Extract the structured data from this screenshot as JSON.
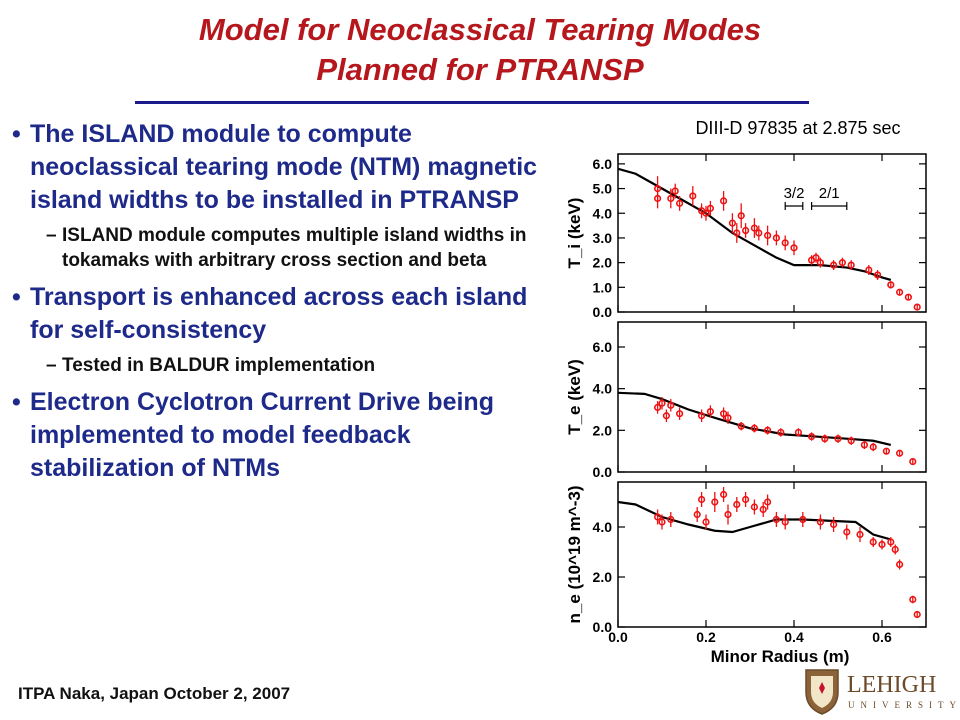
{
  "slide": {
    "title_line1": "Model for Neoclassical Tearing Modes",
    "title_line2": "Planned for PTRANSP",
    "bullets": [
      {
        "text": "The ISLAND module to compute neoclassical tearing mode (NTM) magnetic island widths to be installed in PTRANSP",
        "subs": [
          "ISLAND module computes multiple island widths in tokamaks with arbitrary cross section and beta"
        ]
      },
      {
        "text": "Transport is enhanced across each island for self-consistency",
        "subs": [
          "Tested in BALDUR implementation"
        ]
      },
      {
        "text": "Electron Cyclotron Current Drive being implemented to model feedback stabilization of NTMs",
        "subs": []
      }
    ],
    "footer": "ITPA Naka, Japan October 2, 2007",
    "logo": {
      "name": "LEHIGH",
      "sub": "UNIVERSITY",
      "icon": "lehigh-shield-icon"
    }
  },
  "chart_data": {
    "type": "scatter",
    "title": "DIII-D 97835 at 2.875 sec",
    "xlabel": "Minor Radius (m)",
    "xlim": [
      0.0,
      0.7
    ],
    "x_ticks": [
      "0.0",
      "0.2",
      "0.4",
      "0.6"
    ],
    "colors": {
      "data": "#ee1111",
      "model": "#000000"
    },
    "panels": [
      {
        "ylabel": "T_i (keV)",
        "ylim": [
          0.0,
          6.4
        ],
        "y_ticks": [
          "0.0",
          "1.0",
          "2.0",
          "3.0",
          "4.0",
          "5.0",
          "6.0"
        ],
        "annotations": [
          {
            "text": "3/2",
            "x_range": [
              0.38,
              0.42
            ]
          },
          {
            "text": "2/1",
            "x_range": [
              0.44,
              0.52
            ]
          }
        ],
        "model": {
          "x": [
            0.0,
            0.04,
            0.08,
            0.12,
            0.2,
            0.26,
            0.32,
            0.36,
            0.4,
            0.46,
            0.52,
            0.56,
            0.6,
            0.62
          ],
          "y": [
            5.8,
            5.6,
            5.2,
            4.8,
            4.0,
            3.2,
            2.6,
            2.2,
            1.9,
            1.9,
            1.8,
            1.65,
            1.4,
            1.3
          ]
        },
        "points": [
          {
            "x": 0.09,
            "y": 5.0,
            "err": 0.5
          },
          {
            "x": 0.09,
            "y": 4.6,
            "err": 0.4
          },
          {
            "x": 0.12,
            "y": 4.6,
            "err": 0.4
          },
          {
            "x": 0.13,
            "y": 4.9,
            "err": 0.3
          },
          {
            "x": 0.14,
            "y": 4.4,
            "err": 0.3
          },
          {
            "x": 0.17,
            "y": 4.7,
            "err": 0.4
          },
          {
            "x": 0.19,
            "y": 4.1,
            "err": 0.3
          },
          {
            "x": 0.2,
            "y": 4.0,
            "err": 0.3
          },
          {
            "x": 0.21,
            "y": 4.2,
            "err": 0.3
          },
          {
            "x": 0.24,
            "y": 4.5,
            "err": 0.4
          },
          {
            "x": 0.26,
            "y": 3.6,
            "err": 0.4
          },
          {
            "x": 0.27,
            "y": 3.2,
            "err": 0.4
          },
          {
            "x": 0.28,
            "y": 3.9,
            "err": 0.5
          },
          {
            "x": 0.29,
            "y": 3.3,
            "err": 0.3
          },
          {
            "x": 0.31,
            "y": 3.4,
            "err": 0.4
          },
          {
            "x": 0.32,
            "y": 3.2,
            "err": 0.3
          },
          {
            "x": 0.34,
            "y": 3.1,
            "err": 0.4
          },
          {
            "x": 0.36,
            "y": 3.0,
            "err": 0.3
          },
          {
            "x": 0.38,
            "y": 2.8,
            "err": 0.3
          },
          {
            "x": 0.4,
            "y": 2.6,
            "err": 0.3
          },
          {
            "x": 0.44,
            "y": 2.1,
            "err": 0.2
          },
          {
            "x": 0.45,
            "y": 2.2,
            "err": 0.2
          },
          {
            "x": 0.46,
            "y": 2.0,
            "err": 0.2
          },
          {
            "x": 0.49,
            "y": 1.9,
            "err": 0.2
          },
          {
            "x": 0.51,
            "y": 2.0,
            "err": 0.2
          },
          {
            "x": 0.53,
            "y": 1.9,
            "err": 0.2
          },
          {
            "x": 0.57,
            "y": 1.7,
            "err": 0.2
          },
          {
            "x": 0.59,
            "y": 1.5,
            "err": 0.2
          },
          {
            "x": 0.62,
            "y": 1.1,
            "err": 0.15
          },
          {
            "x": 0.64,
            "y": 0.8,
            "err": 0.1
          },
          {
            "x": 0.66,
            "y": 0.6,
            "err": 0.1
          },
          {
            "x": 0.68,
            "y": 0.2,
            "err": 0.1
          }
        ]
      },
      {
        "ylabel": "T_e (keV)",
        "ylim": [
          0.0,
          7.2
        ],
        "y_ticks": [
          "0.0",
          "2.0",
          "4.0",
          "6.0"
        ],
        "model": {
          "x": [
            0.0,
            0.06,
            0.1,
            0.16,
            0.22,
            0.3,
            0.38,
            0.45,
            0.52,
            0.58,
            0.62
          ],
          "y": [
            3.8,
            3.75,
            3.5,
            3.0,
            2.6,
            2.1,
            1.8,
            1.7,
            1.6,
            1.5,
            1.3
          ]
        },
        "points": [
          {
            "x": 0.09,
            "y": 3.1,
            "err": 0.3
          },
          {
            "x": 0.1,
            "y": 3.3,
            "err": 0.3
          },
          {
            "x": 0.11,
            "y": 2.7,
            "err": 0.3
          },
          {
            "x": 0.12,
            "y": 3.2,
            "err": 0.3
          },
          {
            "x": 0.14,
            "y": 2.8,
            "err": 0.3
          },
          {
            "x": 0.19,
            "y": 2.7,
            "err": 0.3
          },
          {
            "x": 0.21,
            "y": 2.9,
            "err": 0.3
          },
          {
            "x": 0.24,
            "y": 2.8,
            "err": 0.3
          },
          {
            "x": 0.25,
            "y": 2.6,
            "err": 0.3
          },
          {
            "x": 0.28,
            "y": 2.2,
            "err": 0.2
          },
          {
            "x": 0.31,
            "y": 2.1,
            "err": 0.2
          },
          {
            "x": 0.34,
            "y": 2.0,
            "err": 0.2
          },
          {
            "x": 0.37,
            "y": 1.9,
            "err": 0.2
          },
          {
            "x": 0.41,
            "y": 1.9,
            "err": 0.2
          },
          {
            "x": 0.44,
            "y": 1.7,
            "err": 0.2
          },
          {
            "x": 0.47,
            "y": 1.6,
            "err": 0.2
          },
          {
            "x": 0.5,
            "y": 1.6,
            "err": 0.2
          },
          {
            "x": 0.53,
            "y": 1.5,
            "err": 0.2
          },
          {
            "x": 0.56,
            "y": 1.3,
            "err": 0.2
          },
          {
            "x": 0.58,
            "y": 1.2,
            "err": 0.2
          },
          {
            "x": 0.61,
            "y": 1.0,
            "err": 0.15
          },
          {
            "x": 0.64,
            "y": 0.9,
            "err": 0.1
          },
          {
            "x": 0.67,
            "y": 0.5,
            "err": 0.1
          }
        ]
      },
      {
        "ylabel": "n_e (10^19 m^-3)",
        "ylim": [
          0.0,
          5.8
        ],
        "y_ticks": [
          "0.0",
          "2.0",
          "4.0"
        ],
        "model": {
          "x": [
            0.0,
            0.04,
            0.1,
            0.16,
            0.22,
            0.26,
            0.3,
            0.36,
            0.42,
            0.48,
            0.54,
            0.58,
            0.62
          ],
          "y": [
            5.0,
            4.9,
            4.4,
            4.1,
            3.85,
            3.8,
            4.0,
            4.3,
            4.3,
            4.25,
            4.2,
            3.7,
            3.5
          ]
        },
        "points": [
          {
            "x": 0.09,
            "y": 4.4,
            "err": 0.3
          },
          {
            "x": 0.1,
            "y": 4.2,
            "err": 0.3
          },
          {
            "x": 0.12,
            "y": 4.3,
            "err": 0.3
          },
          {
            "x": 0.18,
            "y": 4.5,
            "err": 0.3
          },
          {
            "x": 0.19,
            "y": 5.1,
            "err": 0.3
          },
          {
            "x": 0.2,
            "y": 4.2,
            "err": 0.3
          },
          {
            "x": 0.22,
            "y": 5.0,
            "err": 0.4
          },
          {
            "x": 0.24,
            "y": 5.3,
            "err": 0.3
          },
          {
            "x": 0.25,
            "y": 4.5,
            "err": 0.4
          },
          {
            "x": 0.27,
            "y": 4.9,
            "err": 0.3
          },
          {
            "x": 0.29,
            "y": 5.1,
            "err": 0.3
          },
          {
            "x": 0.31,
            "y": 4.8,
            "err": 0.3
          },
          {
            "x": 0.33,
            "y": 4.7,
            "err": 0.3
          },
          {
            "x": 0.34,
            "y": 5.0,
            "err": 0.3
          },
          {
            "x": 0.36,
            "y": 4.3,
            "err": 0.3
          },
          {
            "x": 0.38,
            "y": 4.2,
            "err": 0.3
          },
          {
            "x": 0.42,
            "y": 4.3,
            "err": 0.3
          },
          {
            "x": 0.46,
            "y": 4.2,
            "err": 0.3
          },
          {
            "x": 0.49,
            "y": 4.1,
            "err": 0.3
          },
          {
            "x": 0.52,
            "y": 3.8,
            "err": 0.3
          },
          {
            "x": 0.55,
            "y": 3.7,
            "err": 0.3
          },
          {
            "x": 0.58,
            "y": 3.4,
            "err": 0.2
          },
          {
            "x": 0.6,
            "y": 3.3,
            "err": 0.2
          },
          {
            "x": 0.62,
            "y": 3.4,
            "err": 0.2
          },
          {
            "x": 0.63,
            "y": 3.1,
            "err": 0.2
          },
          {
            "x": 0.64,
            "y": 2.5,
            "err": 0.2
          },
          {
            "x": 0.67,
            "y": 1.1,
            "err": 0.15
          },
          {
            "x": 0.68,
            "y": 0.5,
            "err": 0.1
          }
        ]
      }
    ]
  }
}
